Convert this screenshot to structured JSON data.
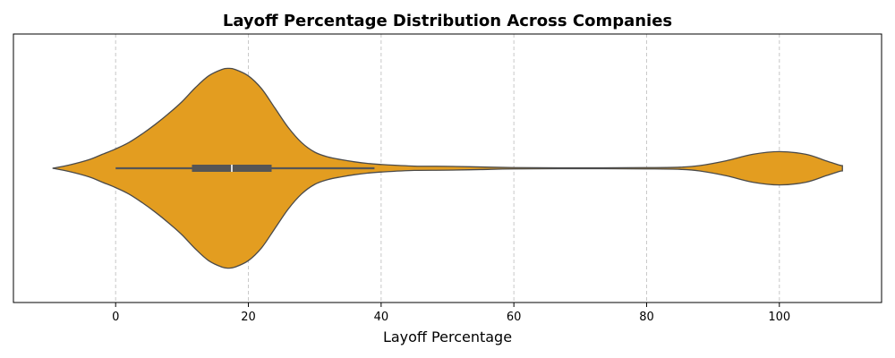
{
  "chart_data": {
    "type": "violin",
    "title": "Layoff Percentage Distribution Across Companies",
    "xlabel": "Layoff Percentage",
    "ylabel": "",
    "xlim": [
      -15.4,
      115.4
    ],
    "x_ticks": [
      0,
      20,
      40,
      60,
      80,
      100
    ],
    "grid": "vertical dashed",
    "colors": {
      "violin_fill": "#e39d20",
      "violin_edge": "#4a4a4a",
      "box": "#555555",
      "median": "#ffffff",
      "grid": "#c8c8c8"
    },
    "box": {
      "whisker_low": 0,
      "q1": 11.5,
      "median": 17.5,
      "q3": 23.5,
      "whisker_high": 39
    },
    "density_profile": [
      [
        -9.5,
        0.0
      ],
      [
        -7,
        0.03
      ],
      [
        -4,
        0.08
      ],
      [
        -2,
        0.13
      ],
      [
        0,
        0.18
      ],
      [
        2,
        0.24
      ],
      [
        4,
        0.32
      ],
      [
        6,
        0.41
      ],
      [
        8,
        0.51
      ],
      [
        10,
        0.62
      ],
      [
        12,
        0.75
      ],
      [
        14,
        0.86
      ],
      [
        16,
        0.92
      ],
      [
        17,
        0.93
      ],
      [
        18,
        0.92
      ],
      [
        20,
        0.86
      ],
      [
        22,
        0.74
      ],
      [
        24,
        0.56
      ],
      [
        26,
        0.38
      ],
      [
        28,
        0.24
      ],
      [
        30,
        0.15
      ],
      [
        32,
        0.105
      ],
      [
        34,
        0.08
      ],
      [
        36,
        0.06
      ],
      [
        38,
        0.045
      ],
      [
        40,
        0.035
      ],
      [
        45,
        0.02
      ],
      [
        50,
        0.018
      ],
      [
        55,
        0.012
      ],
      [
        60,
        0.006
      ],
      [
        70,
        0.004
      ],
      [
        80,
        0.006
      ],
      [
        85,
        0.01
      ],
      [
        88,
        0.025
      ],
      [
        92,
        0.07
      ],
      [
        96,
        0.13
      ],
      [
        100,
        0.155
      ],
      [
        104,
        0.13
      ],
      [
        107,
        0.07
      ],
      [
        109,
        0.03
      ],
      [
        109.5,
        0.025
      ]
    ]
  }
}
